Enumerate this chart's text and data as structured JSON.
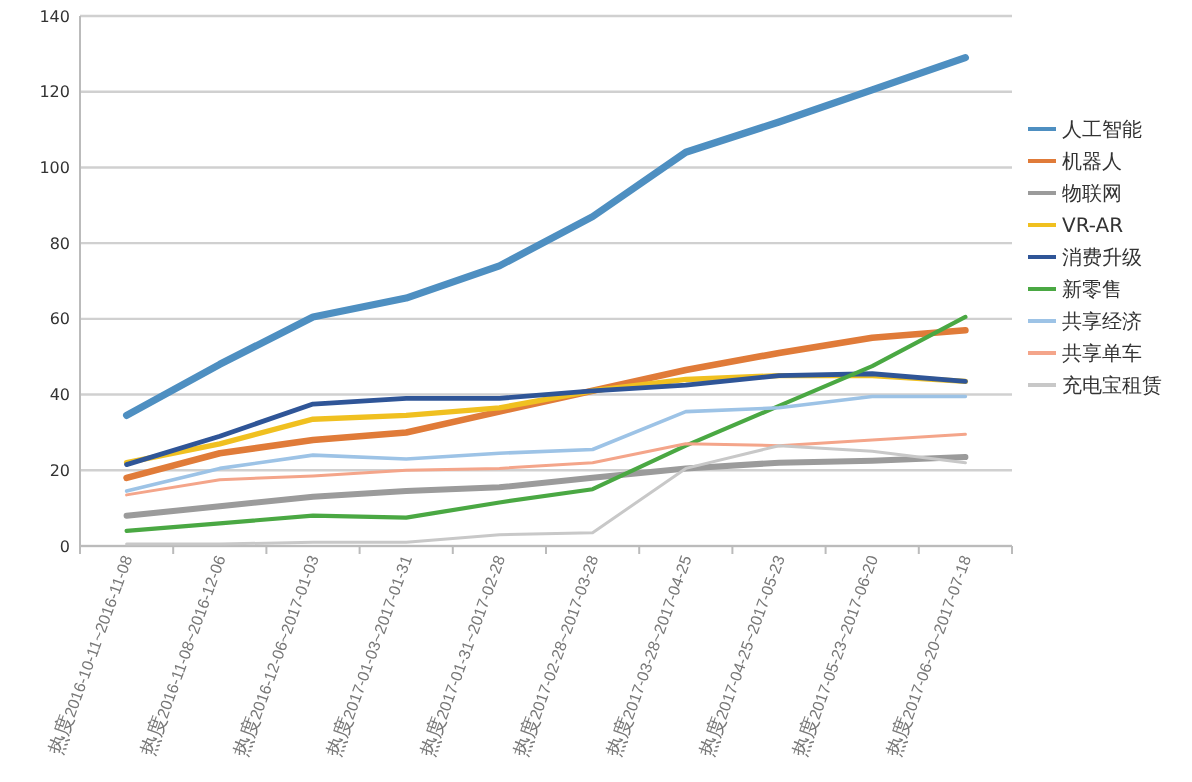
{
  "chart_data": {
    "type": "line",
    "categories": [
      "热度2016-10-11~2016-11-08",
      "热度2016-11-08~2016-12-06",
      "热度2016-12-06~2017-01-03",
      "热度2017-01-03~2017-01-31",
      "热度2017-01-31~2017-02-28",
      "热度2017-02-28~2017-03-28",
      "热度2017-03-28~2017-04-25",
      "热度2017-04-25~2017-05-23",
      "热度2017-05-23~2017-06-20",
      "热度2017-06-20~2017-07-18"
    ],
    "series": [
      {
        "name": "人工智能",
        "color": "#4e8fc1",
        "values": [
          34.5,
          48,
          60.5,
          65.5,
          74,
          87,
          104,
          112,
          120.5,
          129
        ]
      },
      {
        "name": "机器人",
        "color": "#e07b39",
        "values": [
          18,
          24.5,
          28,
          30,
          35.5,
          41,
          46.5,
          51,
          55,
          57
        ]
      },
      {
        "name": "物联网",
        "color": "#9b9b9b",
        "values": [
          8,
          10.5,
          13,
          14.5,
          15.5,
          18,
          20.5,
          22,
          22.5,
          23.5
        ]
      },
      {
        "name": "VR-AR",
        "color": "#f0c020",
        "values": [
          22,
          27,
          33.5,
          34.5,
          36.5,
          41,
          44,
          45,
          45,
          43.5
        ]
      },
      {
        "name": "消费升级",
        "color": "#2f5597",
        "values": [
          21.5,
          29,
          37.5,
          39,
          39,
          41,
          42.5,
          45,
          45.5,
          43.5
        ]
      },
      {
        "name": "新零售",
        "color": "#4aa843",
        "values": [
          4,
          6,
          8,
          7.5,
          11.5,
          15,
          26.5,
          37,
          47.5,
          60.5
        ]
      },
      {
        "name": "共享经济",
        "color": "#9dc3e6",
        "values": [
          14.5,
          20.5,
          24,
          23,
          24.5,
          25.5,
          35.5,
          36.5,
          39.5,
          39.5
        ]
      },
      {
        "name": "共享单车",
        "color": "#f4a58a",
        "values": [
          13.5,
          17.5,
          18.5,
          20,
          20.5,
          22,
          27,
          26.5,
          28,
          29.5
        ]
      },
      {
        "name": "充电宝租赁",
        "color": "#c8c8c8",
        "values": [
          0.5,
          0.5,
          1,
          1,
          3,
          3.5,
          20.5,
          26.5,
          25,
          22
        ]
      }
    ],
    "ylim": [
      0,
      140
    ],
    "yticks": [
      0,
      20,
      40,
      60,
      80,
      100,
      120,
      140
    ],
    "grid": "y",
    "legend": "right",
    "marker": "none",
    "line_style": "solid"
  }
}
